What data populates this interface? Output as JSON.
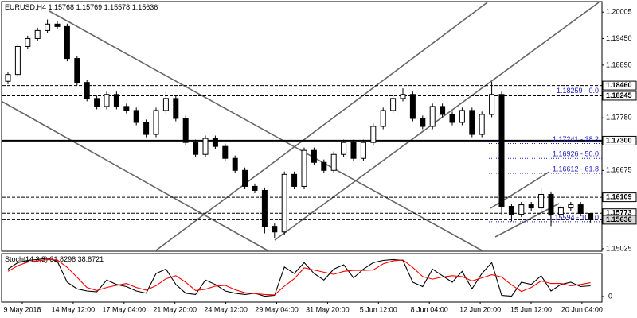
{
  "chart_data": {
    "type": "candlestick",
    "symbol": "EURUSD,H4",
    "open": [
      1.1855,
      1.18693,
      1.19282,
      1.1945,
      1.19618,
      1.19753,
      1.19702,
      1.19029,
      1.18525,
      1.18188,
      1.1802,
      1.18273,
      1.1802,
      1.17936,
      1.17684,
      1.17432,
      1.17936,
      1.18188,
      1.17768,
      1.17263,
      1.17011,
      1.17347,
      1.17179,
      1.16927,
      1.16675,
      1.16338,
      1.16254,
      1.15497,
      1.15379,
      1.16591,
      1.16338,
      1.17095,
      1.16843,
      1.16675,
      1.17011,
      1.17263,
      1.16927,
      1.17263,
      1.176,
      1.17936,
      1.18188,
      1.18273,
      1.17768,
      1.176,
      1.1802,
      1.17852,
      1.17684,
      1.17936,
      1.17432,
      1.17852,
      1.18273,
      1.15918,
      1.1575,
      1.15951,
      1.15884,
      1.1617,
      1.1575,
      1.15884,
      1.15951,
      1.15768
    ],
    "high": [
      1.18753,
      1.19342,
      1.1951,
      1.19678,
      1.1985,
      1.19813,
      1.19762,
      1.19089,
      1.18585,
      1.18248,
      1.18333,
      1.18333,
      1.1808,
      1.17996,
      1.17744,
      1.17996,
      1.1835,
      1.18248,
      1.17828,
      1.17323,
      1.17407,
      1.17407,
      1.17239,
      1.16987,
      1.16735,
      1.16398,
      1.16314,
      1.15557,
      1.16651,
      1.16651,
      1.17155,
      1.17155,
      1.16903,
      1.17071,
      1.17323,
      1.17323,
      1.17323,
      1.1766,
      1.17996,
      1.18248,
      1.184,
      1.18333,
      1.17828,
      1.1808,
      1.1808,
      1.17912,
      1.17996,
      1.17996,
      1.17912,
      1.1854,
      1.18333,
      1.15978,
      1.16011,
      1.16011,
      1.163,
      1.1623,
      1.15944,
      1.16011,
      1.16011,
      1.15769
    ],
    "low": [
      1.1849,
      1.18633,
      1.19222,
      1.1939,
      1.19558,
      1.19642,
      1.18969,
      1.18465,
      1.18128,
      1.1796,
      1.1796,
      1.1796,
      1.17876,
      1.17624,
      1.17372,
      1.17372,
      1.17876,
      1.17708,
      1.17203,
      1.16951,
      1.16951,
      1.17119,
      1.16867,
      1.16615,
      1.16278,
      1.16194,
      1.1535,
      1.1525,
      1.15319,
      1.16278,
      1.16278,
      1.16783,
      1.16615,
      1.16615,
      1.16951,
      1.16867,
      1.16867,
      1.17203,
      1.1754,
      1.17876,
      1.18128,
      1.17708,
      1.1754,
      1.1754,
      1.17792,
      1.17624,
      1.17624,
      1.17372,
      1.17372,
      1.17792,
      1.1575,
      1.156,
      1.1569,
      1.15824,
      1.15824,
      1.155,
      1.1569,
      1.15824,
      1.15708,
      1.15578
    ],
    "close": [
      1.18693,
      1.19282,
      1.1945,
      1.19618,
      1.19753,
      1.19702,
      1.19029,
      1.18525,
      1.18188,
      1.1802,
      1.18273,
      1.1802,
      1.17936,
      1.17684,
      1.17432,
      1.17936,
      1.18188,
      1.17768,
      1.17263,
      1.17011,
      1.17347,
      1.17179,
      1.16927,
      1.16675,
      1.16338,
      1.16254,
      1.15497,
      1.15379,
      1.16591,
      1.16338,
      1.17095,
      1.16843,
      1.16675,
      1.17011,
      1.17263,
      1.16927,
      1.17263,
      1.176,
      1.17936,
      1.18188,
      1.18273,
      1.17768,
      1.176,
      1.1802,
      1.17852,
      1.17684,
      1.17936,
      1.17432,
      1.17852,
      1.18273,
      1.15918,
      1.1575,
      1.15951,
      1.15884,
      1.1617,
      1.1575,
      1.15884,
      1.15951,
      1.15768,
      1.15636
    ],
    "ylim": [
      1.1499,
      1.2021
    ],
    "yticks": [
      {
        "value": 1.20005,
        "label": "1.20005"
      },
      {
        "value": 1.1945,
        "label": "1.19450"
      },
      {
        "value": 1.1889,
        "label": "1.18890"
      },
      {
        "value": 1.1778,
        "label": "1.17780"
      },
      {
        "value": 1.16675,
        "label": "1.16675"
      },
      {
        "value": 1.15025,
        "label": "1.15025"
      }
    ],
    "levels": [
      {
        "value": 1.1846,
        "label": "1.18460"
      },
      {
        "value": 1.18245,
        "label": "1.18245"
      },
      {
        "value": 1.173,
        "label": "1.17300"
      },
      {
        "value": 1.16109,
        "label": "1.16109"
      },
      {
        "value": 1.15773,
        "label": "1.15773"
      },
      {
        "value": 1.15636,
        "label": "1.15636"
      }
    ],
    "fib_levels": [
      {
        "value": 1.18259,
        "label": "1.18259 - 0.0"
      },
      {
        "value": 1.17241,
        "label": "1.17241 - 38.2"
      },
      {
        "value": 1.16926,
        "label": "1.16926 - 50.0"
      },
      {
        "value": 1.16612,
        "label": "1.16612 - 61.8"
      },
      {
        "value": 1.15594,
        "label": "1.15594 - 100.0"
      }
    ],
    "time_labels": [
      "9 May 2018",
      "14 May 12:00",
      "17 May 04:00",
      "21 May 20:00",
      "24 May 12:00",
      "29 May 04:00",
      "31 May 20:00",
      "5 Jun 12:00",
      "8 Jun 04:00",
      "12 Jun 20:00",
      "15 Jun 12:00",
      "20 Jun 04:00"
    ],
    "stochastic": {
      "type": "line",
      "title": "Stoch(14,3,3)",
      "ylim": [
        0,
        100
      ],
      "yticks": [
        0
      ],
      "series": [
        {
          "color": "#000000",
          "values": [
            70,
            85,
            90,
            92,
            95,
            88,
            40,
            25,
            20,
            18,
            45,
            35,
            30,
            20,
            15,
            60,
            70,
            35,
            15,
            12,
            45,
            35,
            20,
            15,
            12,
            15,
            8,
            10,
            75,
            60,
            85,
            60,
            45,
            70,
            80,
            50,
            70,
            85,
            90,
            92,
            90,
            40,
            30,
            70,
            55,
            40,
            65,
            25,
            60,
            85,
            10,
            8,
            40,
            35,
            55,
            20,
            35,
            40,
            30,
            31.8298
          ]
        },
        {
          "color": "#ff0000",
          "values": [
            65,
            78,
            86,
            89,
            92,
            91,
            74,
            51,
            28,
            21,
            28,
            33,
            37,
            28,
            22,
            32,
            48,
            55,
            40,
            21,
            24,
            31,
            33,
            23,
            16,
            14,
            12,
            11,
            31,
            48,
            73,
            68,
            63,
            58,
            65,
            67,
            67,
            68,
            82,
            89,
            91,
            74,
            53,
            47,
            52,
            55,
            53,
            43,
            50,
            57,
            52,
            34,
            19,
            28,
            43,
            37,
            37,
            32,
            35,
            38.8721
          ]
        }
      ]
    }
  }
}
